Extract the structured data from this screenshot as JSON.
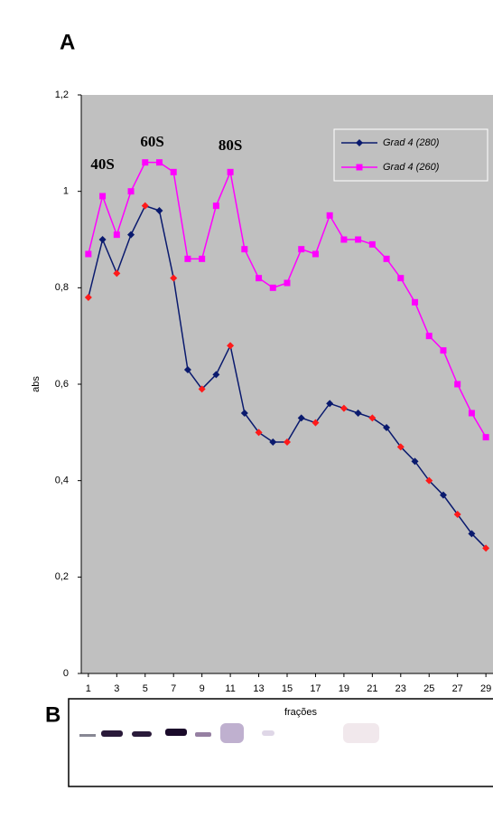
{
  "chart_data": {
    "type": "line",
    "panel_label": "A",
    "x": [
      1,
      2,
      3,
      4,
      5,
      6,
      7,
      8,
      9,
      10,
      11,
      12,
      13,
      14,
      15,
      16,
      17,
      18,
      19,
      20,
      21,
      22,
      23,
      24,
      25,
      26,
      27,
      28,
      29
    ],
    "series": [
      {
        "name": "Grad 4 (280)",
        "color": "#0a1a6e",
        "marker": "diamond",
        "values": [
          0.78,
          0.9,
          0.83,
          0.91,
          0.97,
          0.96,
          0.82,
          0.63,
          0.59,
          0.62,
          0.68,
          0.54,
          0.5,
          0.48,
          0.48,
          0.53,
          0.52,
          0.56,
          0.55,
          0.54,
          0.53,
          0.51,
          0.47,
          0.44,
          0.4,
          0.37,
          0.33,
          0.29,
          0.26
        ],
        "marker_colors": [
          "#ff1a1a",
          "#0a1a6e",
          "#ff1a1a",
          "#0a1a6e",
          "#ff1a1a",
          "#0a1a6e",
          "#ff1a1a",
          "#0a1a6e",
          "#ff1a1a",
          "#0a1a6e",
          "#ff1a1a",
          "#0a1a6e",
          "#ff1a1a",
          "#0a1a6e",
          "#ff1a1a",
          "#0a1a6e",
          "#ff1a1a",
          "#0a1a6e",
          "#ff1a1a",
          "#0a1a6e",
          "#ff1a1a",
          "#0a1a6e",
          "#ff1a1a",
          "#0a1a6e",
          "#ff1a1a",
          "#0a1a6e",
          "#ff1a1a",
          "#0a1a6e",
          "#ff1a1a"
        ]
      },
      {
        "name": "Grad 4 (260)",
        "color": "#ff00ff",
        "marker": "square",
        "values": [
          0.87,
          0.99,
          0.91,
          1.0,
          1.06,
          1.06,
          1.04,
          0.86,
          0.86,
          0.97,
          1.04,
          0.88,
          0.82,
          0.8,
          0.81,
          0.88,
          0.87,
          0.95,
          0.9,
          0.9,
          0.89,
          0.86,
          0.82,
          0.77,
          0.7,
          0.67,
          0.6,
          0.54,
          0.49
        ]
      }
    ],
    "xlim": [
      0.5,
      29.5
    ],
    "xticks": [
      1,
      3,
      5,
      7,
      9,
      11,
      13,
      15,
      17,
      19,
      21,
      23,
      25,
      27,
      29
    ],
    "ylim": [
      0,
      1.2
    ],
    "yticks": [
      0,
      {
        "value": 0.2,
        "label": "0,2"
      },
      {
        "value": 0.4,
        "label": "0,4"
      },
      {
        "value": 0.6,
        "label": "0,6"
      },
      {
        "value": 0.8,
        "label": "0,8"
      },
      1,
      {
        "value": 1.2,
        "label": "1,2"
      }
    ],
    "x_label": "frações",
    "y_label": "abs",
    "annotations": [
      {
        "text": "40S",
        "x": 2
      },
      {
        "text": "60S",
        "x": 5.5
      },
      {
        "text": "80S",
        "x": 11
      }
    ],
    "legend": "upper right",
    "background": "#c0c0c0"
  },
  "panel_b": {
    "label": "B"
  }
}
